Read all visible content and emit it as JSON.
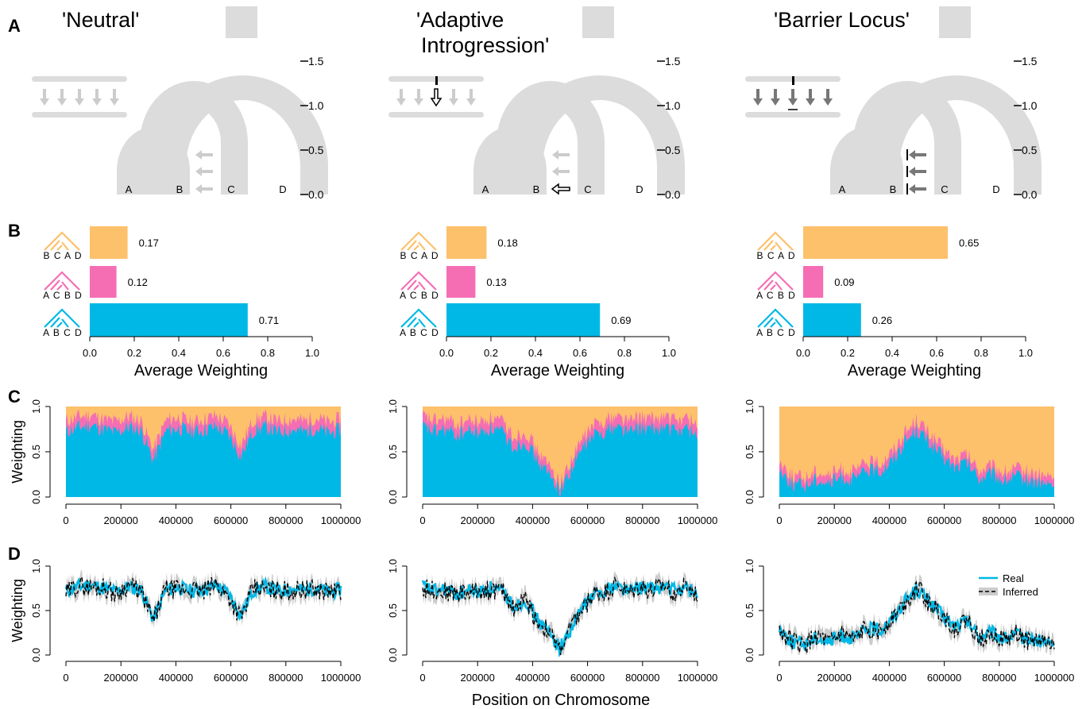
{
  "figure": {
    "panel_letters": [
      "A",
      "B",
      "C",
      "D"
    ],
    "scenario_titles": [
      [
        "'Neutral'"
      ],
      [
        "'Adaptive",
        "Introgression'"
      ],
      [
        "'Barrier Locus'"
      ]
    ],
    "tree_tip_labels": [
      "A",
      "B",
      "C",
      "D"
    ],
    "tree_axis_ticks": [
      "1.5",
      "1.0",
      "0.5",
      "0.0"
    ],
    "colors": {
      "topo_bcad": "#FDC06B",
      "topo_acbd": "#F56EB4",
      "topo_abcd": "#00B8E6",
      "tree_gray": "#DCDCDC",
      "arrow_light": "#CCCCCC",
      "arrow_dark": "#777777",
      "inferred_band": "#CCCCCC"
    }
  },
  "chart_data": [
    {
      "type": "bar",
      "panel": "B",
      "scenario": "'Neutral'",
      "categories": [
        "B C A D",
        "A C B D",
        "A B C D"
      ],
      "values": [
        0.17,
        0.12,
        0.71
      ],
      "value_labels": [
        "0.17",
        "0.12",
        "0.71"
      ],
      "xlabel": "Average Weighting",
      "xlim": [
        0,
        1
      ],
      "xticks": [
        "0.0",
        "0.2",
        "0.4",
        "0.6",
        "0.8",
        "1.0"
      ]
    },
    {
      "type": "bar",
      "panel": "B",
      "scenario": "'Adaptive Introgression'",
      "categories": [
        "B C A D",
        "A C B D",
        "A B C D"
      ],
      "values": [
        0.18,
        0.13,
        0.69
      ],
      "value_labels": [
        "0.18",
        "0.13",
        "0.69"
      ],
      "xlabel": "Average Weighting",
      "xlim": [
        0,
        1
      ],
      "xticks": [
        "0.0",
        "0.2",
        "0.4",
        "0.6",
        "0.8",
        "1.0"
      ]
    },
    {
      "type": "bar",
      "panel": "B",
      "scenario": "'Barrier Locus'",
      "categories": [
        "B C A D",
        "A C B D",
        "A B C D"
      ],
      "values": [
        0.65,
        0.09,
        0.26
      ],
      "value_labels": [
        "0.65",
        "0.09",
        "0.26"
      ],
      "xlabel": "Average Weighting",
      "xlim": [
        0,
        1
      ],
      "xticks": [
        "0.0",
        "0.2",
        "0.4",
        "0.6",
        "0.8",
        "1.0"
      ]
    },
    {
      "type": "area",
      "panel": "C",
      "scenario": "'Neutral'",
      "ylabel": "Weighting",
      "xlim": [
        0,
        1000000
      ],
      "ylim": [
        0,
        1
      ],
      "xticks": [
        "0",
        "200000",
        "400000",
        "600000",
        "800000",
        "1000000"
      ],
      "yticks": [
        "0.0",
        "0.5",
        "1.0"
      ],
      "x": [
        0,
        50000,
        100000,
        150000,
        200000,
        250000,
        300000,
        335000,
        350000,
        400000,
        450000,
        500000,
        550000,
        600000,
        620000,
        650000,
        700000,
        750000,
        800000,
        850000,
        900000,
        950000,
        1000000
      ],
      "series": [
        {
          "values": [
            0.72,
            0.77,
            0.79,
            0.75,
            0.71,
            0.77,
            0.74,
            0.4,
            0.73,
            0.76,
            0.72,
            0.74,
            0.78,
            0.69,
            0.45,
            0.73,
            0.77,
            0.71,
            0.75,
            0.72,
            0.76,
            0.7,
            0.74
          ]
        },
        {
          "values": [
            0.82,
            0.87,
            0.89,
            0.84,
            0.81,
            0.87,
            0.83,
            0.5,
            0.83,
            0.86,
            0.81,
            0.84,
            0.88,
            0.79,
            0.55,
            0.83,
            0.87,
            0.81,
            0.85,
            0.82,
            0.86,
            0.8,
            0.84
          ]
        }
      ]
    },
    {
      "type": "area",
      "panel": "C",
      "scenario": "'Adaptive Introgression'",
      "ylabel": "",
      "xlim": [
        0,
        1000000
      ],
      "ylim": [
        0,
        1
      ],
      "xticks": [
        "0",
        "200000",
        "400000",
        "600000",
        "800000",
        "1000000"
      ],
      "yticks": [
        "0.0",
        "0.5",
        "1.0"
      ],
      "x": [
        0,
        50000,
        100000,
        150000,
        200000,
        250000,
        300000,
        350000,
        400000,
        430000,
        460000,
        480000,
        500000,
        520000,
        540000,
        560000,
        600000,
        650000,
        700000,
        750000,
        800000,
        850000,
        900000,
        950000,
        1000000
      ],
      "series": [
        {
          "values": [
            0.77,
            0.72,
            0.74,
            0.68,
            0.73,
            0.71,
            0.76,
            0.7,
            0.55,
            0.62,
            0.4,
            0.25,
            0.08,
            0.3,
            0.55,
            0.68,
            0.74,
            0.78,
            0.72,
            0.76,
            0.74,
            0.77,
            0.73,
            0.75,
            0.7
          ]
        },
        {
          "values": [
            0.87,
            0.82,
            0.84,
            0.78,
            0.83,
            0.81,
            0.86,
            0.8,
            0.65,
            0.71,
            0.49,
            0.33,
            0.14,
            0.38,
            0.64,
            0.78,
            0.84,
            0.88,
            0.82,
            0.86,
            0.84,
            0.87,
            0.83,
            0.85,
            0.8
          ]
        }
      ]
    },
    {
      "type": "area",
      "panel": "C",
      "scenario": "'Barrier Locus'",
      "ylabel": "",
      "xlim": [
        0,
        1000000
      ],
      "ylim": [
        0,
        1
      ],
      "xticks": [
        "0",
        "200000",
        "400000",
        "600000",
        "800000",
        "1000000"
      ],
      "yticks": [
        "0.0",
        "0.5",
        "1.0"
      ],
      "x": [
        0,
        50000,
        100000,
        150000,
        200000,
        250000,
        300000,
        350000,
        400000,
        450000,
        480000,
        500000,
        520000,
        550000,
        600000,
        650000,
        700000,
        750000,
        800000,
        850000,
        900000,
        950000,
        1000000
      ],
      "series": [
        {
          "values": [
            0.3,
            0.15,
            0.12,
            0.2,
            0.15,
            0.22,
            0.18,
            0.3,
            0.28,
            0.4,
            0.6,
            0.75,
            0.6,
            0.45,
            0.32,
            0.38,
            0.2,
            0.25,
            0.18,
            0.22,
            0.18,
            0.15,
            0.12
          ]
        },
        {
          "values": [
            0.38,
            0.22,
            0.19,
            0.27,
            0.22,
            0.29,
            0.25,
            0.37,
            0.35,
            0.48,
            0.68,
            0.84,
            0.68,
            0.53,
            0.39,
            0.45,
            0.27,
            0.32,
            0.25,
            0.29,
            0.25,
            0.22,
            0.19
          ]
        }
      ]
    },
    {
      "type": "line",
      "panel": "D",
      "scenario": "'Neutral'",
      "ylabel": "Weighting",
      "xlim": [
        0,
        1000000
      ],
      "ylim": [
        0,
        1
      ],
      "xticks": [
        "0",
        "200000",
        "400000",
        "600000",
        "800000",
        "1000000"
      ],
      "yticks": [
        "0.0",
        "0.5",
        "1.0"
      ],
      "x": [
        0,
        50000,
        100000,
        150000,
        200000,
        250000,
        300000,
        335000,
        350000,
        400000,
        450000,
        500000,
        550000,
        600000,
        620000,
        650000,
        700000,
        750000,
        800000,
        850000,
        900000,
        950000,
        1000000
      ],
      "series": [
        {
          "values": [
            0.72,
            0.77,
            0.79,
            0.75,
            0.71,
            0.77,
            0.74,
            0.4,
            0.73,
            0.76,
            0.72,
            0.74,
            0.78,
            0.69,
            0.45,
            0.73,
            0.77,
            0.71,
            0.75,
            0.72,
            0.76,
            0.7,
            0.74
          ]
        },
        {
          "values": [
            0.69,
            0.79,
            0.76,
            0.77,
            0.68,
            0.79,
            0.71,
            0.38,
            0.75,
            0.73,
            0.74,
            0.71,
            0.8,
            0.66,
            0.42,
            0.75,
            0.74,
            0.73,
            0.72,
            0.74,
            0.73,
            0.72,
            0.71
          ]
        }
      ]
    },
    {
      "type": "line",
      "panel": "D",
      "scenario": "'Adaptive Introgression'",
      "ylabel": "",
      "xlim": [
        0,
        1000000
      ],
      "ylim": [
        0,
        1
      ],
      "xticks": [
        "0",
        "200000",
        "400000",
        "600000",
        "800000",
        "1000000"
      ],
      "yticks": [
        "0.0",
        "0.5",
        "1.0"
      ],
      "x": [
        0,
        50000,
        100000,
        150000,
        200000,
        250000,
        300000,
        350000,
        400000,
        430000,
        460000,
        480000,
        500000,
        520000,
        540000,
        560000,
        600000,
        650000,
        700000,
        750000,
        800000,
        850000,
        900000,
        950000,
        1000000
      ],
      "series": [
        {
          "values": [
            0.77,
            0.72,
            0.74,
            0.68,
            0.73,
            0.71,
            0.76,
            0.7,
            0.55,
            0.62,
            0.4,
            0.25,
            0.08,
            0.3,
            0.55,
            0.68,
            0.74,
            0.78,
            0.72,
            0.76,
            0.74,
            0.77,
            0.73,
            0.75,
            0.7
          ]
        },
        {
          "values": [
            0.74,
            0.74,
            0.71,
            0.7,
            0.7,
            0.73,
            0.73,
            0.72,
            0.52,
            0.64,
            0.37,
            0.27,
            0.05,
            0.32,
            0.52,
            0.7,
            0.71,
            0.8,
            0.69,
            0.78,
            0.71,
            0.79,
            0.7,
            0.77,
            0.67
          ]
        }
      ]
    },
    {
      "type": "line",
      "panel": "D",
      "scenario": "'Barrier Locus'",
      "ylabel": "",
      "legend": [
        "Real",
        "Inferred"
      ],
      "legend_position": "top-right",
      "xlim": [
        0,
        1000000
      ],
      "ylim": [
        0,
        1
      ],
      "xticks": [
        "0",
        "200000",
        "400000",
        "600000",
        "800000",
        "1000000"
      ],
      "yticks": [
        "0.0",
        "0.5",
        "1.0"
      ],
      "x": [
        0,
        50000,
        100000,
        150000,
        200000,
        250000,
        300000,
        350000,
        400000,
        450000,
        480000,
        500000,
        520000,
        550000,
        600000,
        650000,
        700000,
        750000,
        800000,
        850000,
        900000,
        950000,
        1000000
      ],
      "series": [
        {
          "name": "Real",
          "values": [
            0.3,
            0.15,
            0.12,
            0.2,
            0.15,
            0.22,
            0.18,
            0.3,
            0.28,
            0.4,
            0.6,
            0.75,
            0.6,
            0.45,
            0.32,
            0.38,
            0.2,
            0.25,
            0.18,
            0.22,
            0.18,
            0.15,
            0.12
          ]
        },
        {
          "name": "Inferred",
          "values": [
            0.27,
            0.17,
            0.09,
            0.22,
            0.12,
            0.24,
            0.15,
            0.32,
            0.25,
            0.42,
            0.57,
            0.77,
            0.57,
            0.47,
            0.29,
            0.4,
            0.17,
            0.27,
            0.15,
            0.24,
            0.15,
            0.17,
            0.09
          ]
        }
      ]
    }
  ],
  "shared_xlabel": "Position on Chromosome"
}
